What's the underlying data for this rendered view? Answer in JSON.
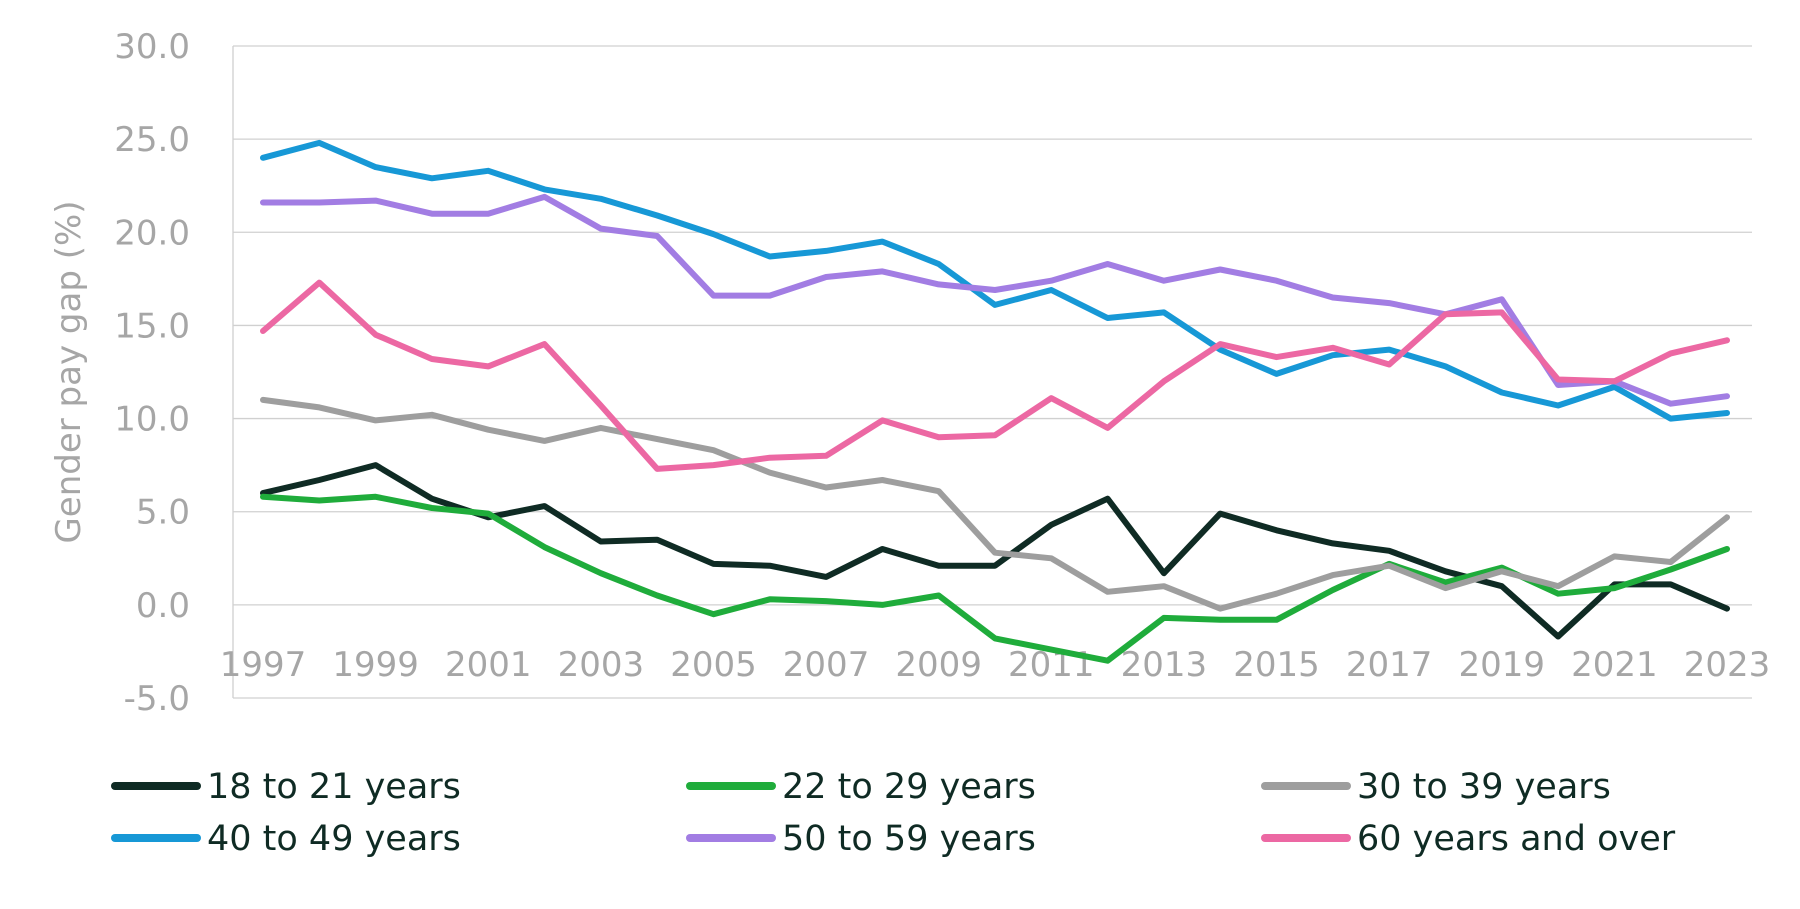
{
  "chart_data": {
    "type": "line",
    "ylabel": "Gender pay gap (%)",
    "xlabel": "",
    "title": "",
    "ylim": [
      -5,
      30
    ],
    "yticks": [
      "30.0",
      "25.0",
      "20.0",
      "15.0",
      "10.0",
      "5.0",
      "0.0",
      "-5.0"
    ],
    "ytick_values": [
      30,
      25,
      20,
      15,
      10,
      5,
      0,
      -5
    ],
    "x": [
      1997,
      1998,
      1999,
      2000,
      2001,
      2002,
      2003,
      2004,
      2005,
      2006,
      2007,
      2008,
      2009,
      2010,
      2011,
      2012,
      2013,
      2014,
      2015,
      2016,
      2017,
      2018,
      2019,
      2020,
      2021,
      2022,
      2023
    ],
    "xtick_labels": [
      "1997",
      "1999",
      "2001",
      "2003",
      "2005",
      "2007",
      "2009",
      "2011",
      "2013",
      "2015",
      "2017",
      "2019",
      "2021",
      "2023"
    ],
    "xtick_values": [
      1997,
      1999,
      2001,
      2003,
      2005,
      2007,
      2009,
      2011,
      2013,
      2015,
      2017,
      2019,
      2021,
      2023
    ],
    "grid": true,
    "legend_position": "bottom",
    "series": [
      {
        "name": "18 to 21 years",
        "color": "#0f2b24",
        "values": [
          6.0,
          6.7,
          7.5,
          5.7,
          4.7,
          5.3,
          3.4,
          3.5,
          2.2,
          2.1,
          1.5,
          3.0,
          2.1,
          2.1,
          4.3,
          5.7,
          1.7,
          4.9,
          4.0,
          3.3,
          2.9,
          1.8,
          1.0,
          -1.7,
          1.1,
          1.1,
          -0.2
        ]
      },
      {
        "name": "22 to 29 years",
        "color": "#1fac3b",
        "values": [
          5.8,
          5.6,
          5.8,
          5.2,
          4.9,
          3.1,
          1.7,
          0.5,
          -0.5,
          0.3,
          0.2,
          0.0,
          0.5,
          -1.8,
          -2.4,
          -3.0,
          -0.7,
          -0.8,
          -0.8,
          0.8,
          2.2,
          1.2,
          2.0,
          0.6,
          0.9,
          1.9,
          3.0
        ]
      },
      {
        "name": "30 to 39 years",
        "color": "#9e9e9e",
        "values": [
          11.0,
          10.6,
          9.9,
          10.2,
          9.4,
          8.8,
          9.5,
          8.9,
          8.3,
          7.1,
          6.3,
          6.7,
          6.1,
          2.8,
          2.5,
          0.7,
          1.0,
          -0.2,
          0.6,
          1.6,
          2.1,
          0.9,
          1.8,
          1.0,
          2.6,
          2.3,
          4.7
        ]
      },
      {
        "name": "40 to 49 years",
        "color": "#1798d6",
        "values": [
          24.0,
          24.8,
          23.5,
          22.9,
          23.3,
          22.3,
          21.8,
          20.9,
          19.9,
          18.7,
          19.0,
          19.5,
          18.3,
          16.1,
          16.9,
          15.4,
          15.7,
          13.7,
          12.4,
          13.4,
          13.7,
          12.8,
          11.4,
          10.7,
          11.7,
          10.0,
          10.3
        ]
      },
      {
        "name": "50 to 59 years",
        "color": "#a27de3",
        "values": [
          21.6,
          21.6,
          21.7,
          21.0,
          21.0,
          21.9,
          20.2,
          19.8,
          16.6,
          16.6,
          17.6,
          17.9,
          17.2,
          16.9,
          17.4,
          18.3,
          17.4,
          18.0,
          17.4,
          16.5,
          16.2,
          15.6,
          16.4,
          11.8,
          12.0,
          10.8,
          11.2
        ]
      },
      {
        "name": "60 years and over",
        "color": "#ec68a3",
        "values": [
          14.7,
          17.3,
          14.5,
          13.2,
          12.8,
          14.0,
          10.7,
          7.3,
          7.5,
          7.9,
          8.0,
          9.9,
          9.0,
          9.1,
          11.1,
          9.5,
          12.0,
          14.0,
          13.3,
          13.8,
          12.9,
          15.6,
          15.7,
          12.1,
          12.0,
          13.5,
          14.2
        ]
      }
    ]
  }
}
